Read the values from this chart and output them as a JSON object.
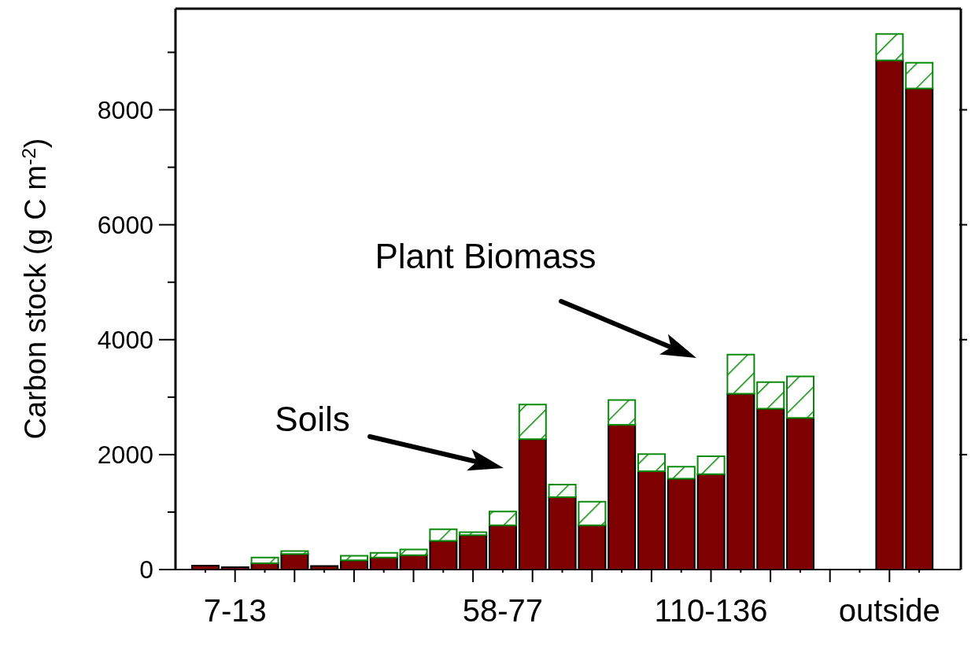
{
  "chart_data": {
    "type": "bar",
    "stacked": true,
    "ylabel": "Carbon stock (g C m$^{-2}$)",
    "categories": [
      null,
      "7-13",
      null,
      null,
      null,
      null,
      null,
      null,
      null,
      null,
      "58-77",
      null,
      null,
      null,
      null,
      null,
      null,
      "110-136",
      null,
      null,
      null,
      null,
      null,
      "outside",
      null
    ],
    "series": [
      {
        "color": "#7f0000",
        "values": [
          70,
          40,
          110,
          270,
          60,
          160,
          210,
          250,
          500,
          600,
          770,
          2270,
          1260,
          770,
          2520,
          1710,
          1580,
          1660,
          3060,
          2800,
          2640,
          null,
          null,
          8860,
          8370
        ]
      },
      {
        "color": "#0a8a0a",
        "values": [
          null,
          null,
          100,
          50,
          null,
          80,
          80,
          100,
          200,
          50,
          240,
          600,
          220,
          410,
          430,
          300,
          210,
          310,
          680,
          460,
          720,
          null,
          null,
          460,
          450
        ]
      }
    ],
    "ylim": [
      0,
      9760
    ],
    "yticks": [
      0,
      {
        "value": 1000,
        "label": null
      },
      2000,
      {
        "value": 3000,
        "label": null
      },
      4000,
      {
        "value": 5000,
        "label": null
      },
      6000,
      {
        "value": 7000,
        "label": null
      },
      8000,
      {
        "value": 9000,
        "label": null
      }
    ],
    "annotations": [
      "Soils",
      "Plant Biomass"
    ]
  }
}
